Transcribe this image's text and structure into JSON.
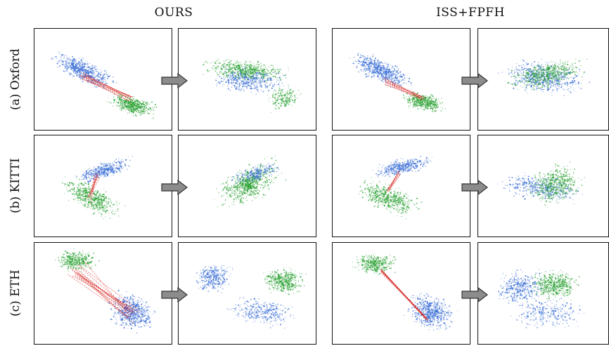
{
  "columns": {
    "ours": "OURS",
    "iss_fpfh": "ISS+FPFH"
  },
  "rows": [
    {
      "label": "(a) Oxford"
    },
    {
      "label": "(b) KITTI"
    },
    {
      "label": "(c) ETH"
    }
  ],
  "colors": {
    "source_cloud": "#3b6fd6",
    "target_cloud": "#2ea336",
    "correspondence": "#d9302c",
    "arrow_fill": "#8c8c8c"
  }
}
